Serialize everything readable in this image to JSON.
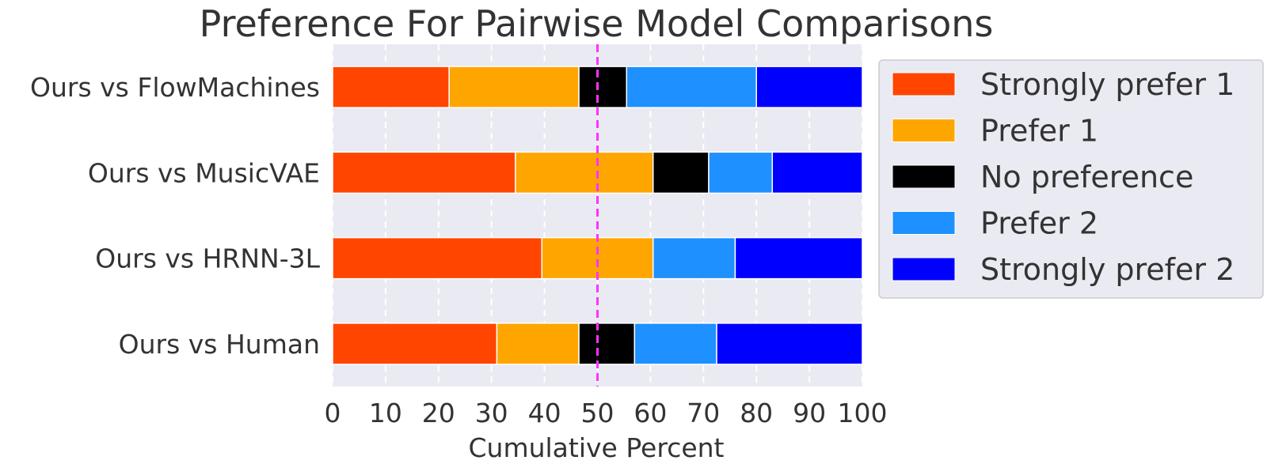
{
  "chart_data": {
    "type": "bar",
    "orientation": "horizontal",
    "stacked": true,
    "title": "Preference For Pairwise Model Comparisons",
    "xlabel": "Cumulative Percent",
    "ylabel": "",
    "xlim": [
      0,
      100
    ],
    "xticks": [
      0,
      10,
      20,
      30,
      40,
      50,
      60,
      70,
      80,
      90,
      100
    ],
    "grid": true,
    "reference_line": {
      "x": 50,
      "style": "dashed",
      "color": "#ff33ff"
    },
    "legend_position": "right",
    "categories": [
      "Ours vs FlowMachines",
      "Ours vs MusicVAE",
      "Ours vs HRNN-3L",
      "Ours vs Human"
    ],
    "series": [
      {
        "name": "Strongly prefer 1",
        "color": "#ff4500",
        "values": [
          22,
          34.5,
          39.5,
          31
        ]
      },
      {
        "name": "Prefer 1",
        "color": "#ffa500",
        "values": [
          24.5,
          26,
          21,
          15.5
        ]
      },
      {
        "name": "No preference",
        "color": "#000000",
        "values": [
          9,
          10.5,
          0,
          10.5
        ]
      },
      {
        "name": "Prefer 2",
        "color": "#1e90ff",
        "values": [
          24.5,
          12,
          15.5,
          15.5
        ]
      },
      {
        "name": "Strongly prefer 2",
        "color": "#0000ff",
        "values": [
          20,
          17,
          24,
          27.5
        ]
      }
    ]
  }
}
